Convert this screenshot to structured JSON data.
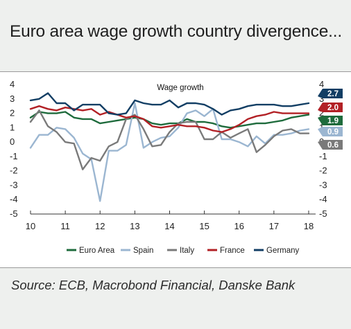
{
  "page": {
    "title": "Euro area wage growth country divergence...",
    "source": "Source: ECB, Macrobond Financial, Danske Bank"
  },
  "chart_data": {
    "type": "line",
    "title": "Wage growth",
    "xlabel": "",
    "ylabel": "",
    "ylim": [
      -5,
      4
    ],
    "xlim": [
      2010,
      2018.2
    ],
    "grid": false,
    "legend_position": "bottom",
    "y_ticks": [
      -5,
      -4,
      -3,
      -2,
      -1,
      0,
      1,
      2,
      3,
      4
    ],
    "y_tick_labels": [
      "-5",
      "-4",
      "-3",
      "-2",
      "-1",
      "0",
      "1",
      "2",
      "3",
      "4"
    ],
    "x_ticks": [
      2010,
      2011,
      2012,
      2013,
      2014,
      2015,
      2016,
      2017,
      2018
    ],
    "x_tick_labels": [
      "10",
      "11",
      "12",
      "13",
      "14",
      "15",
      "16",
      "17",
      "18"
    ],
    "x": [
      2010.0,
      2010.25,
      2010.5,
      2010.75,
      2011.0,
      2011.25,
      2011.5,
      2011.75,
      2012.0,
      2012.25,
      2012.5,
      2012.75,
      2013.0,
      2013.25,
      2013.5,
      2013.75,
      2014.0,
      2014.25,
      2014.5,
      2014.75,
      2015.0,
      2015.25,
      2015.5,
      2015.75,
      2016.0,
      2016.25,
      2016.5,
      2016.75,
      2017.0,
      2017.25,
      2017.5,
      2017.75,
      2018.0
    ],
    "series": [
      {
        "name": "Euro Area",
        "color": "#1e6b3c",
        "values": [
          1.7,
          2.1,
          2.0,
          2.0,
          2.1,
          1.7,
          1.6,
          1.6,
          1.3,
          1.4,
          1.5,
          1.6,
          1.7,
          1.6,
          1.3,
          1.2,
          1.3,
          1.3,
          1.6,
          1.4,
          1.4,
          1.3,
          1.1,
          1.0,
          1.1,
          1.2,
          1.3,
          1.3,
          1.4,
          1.5,
          1.7,
          1.8,
          1.9
        ]
      },
      {
        "name": "Spain",
        "color": "#9bb6d1",
        "values": [
          -0.4,
          0.5,
          0.5,
          1.0,
          0.9,
          0.3,
          -0.8,
          -1.2,
          -4.1,
          -0.6,
          -0.6,
          -0.2,
          2.7,
          -0.4,
          0.0,
          0.3,
          0.4,
          1.0,
          2.0,
          2.2,
          1.8,
          2.3,
          0.2,
          0.2,
          0.0,
          -0.3,
          0.4,
          -0.1,
          0.5,
          0.5,
          0.6,
          0.8,
          0.9
        ]
      },
      {
        "name": "Italy",
        "color": "#7a7a7a",
        "values": [
          1.4,
          2.2,
          1.1,
          0.7,
          0.0,
          -0.1,
          -1.9,
          -1.1,
          -1.3,
          -0.3,
          0.0,
          1.6,
          1.9,
          0.9,
          -0.3,
          -0.2,
          0.7,
          1.3,
          1.4,
          1.4,
          0.2,
          0.2,
          0.7,
          0.3,
          0.6,
          0.9,
          -0.7,
          -0.2,
          0.4,
          0.8,
          0.9,
          0.6,
          0.6
        ]
      },
      {
        "name": "France",
        "color": "#b22025",
        "values": [
          2.3,
          2.5,
          2.3,
          2.2,
          2.4,
          2.3,
          2.2,
          2.3,
          1.9,
          2.1,
          1.9,
          1.7,
          1.8,
          1.6,
          1.1,
          1.0,
          1.1,
          1.2,
          1.1,
          1.1,
          1.0,
          0.8,
          0.7,
          0.9,
          1.2,
          1.6,
          1.8,
          1.9,
          2.1,
          2.0,
          2.0,
          2.0,
          2.0
        ]
      },
      {
        "name": "Germany",
        "color": "#123e64",
        "values": [
          2.9,
          3.0,
          3.4,
          2.7,
          2.7,
          2.2,
          2.6,
          2.6,
          2.6,
          2.0,
          1.9,
          2.0,
          2.9,
          2.7,
          2.6,
          2.6,
          2.9,
          2.4,
          2.7,
          2.7,
          2.6,
          2.3,
          1.9,
          2.2,
          2.3,
          2.5,
          2.6,
          2.6,
          2.6,
          2.5,
          2.5,
          2.6,
          2.7
        ]
      }
    ],
    "end_labels": [
      {
        "text": "2.7",
        "value": 2.7,
        "color": "#123e64"
      },
      {
        "text": "2.0",
        "value": 2.0,
        "color": "#b22025"
      },
      {
        "text": "1.9",
        "value": 1.9,
        "color": "#1e6b3c"
      },
      {
        "text": "0.9",
        "value": 0.9,
        "color": "#9bb6d1"
      },
      {
        "text": "0.6",
        "value": 0.6,
        "color": "#7a7a7a"
      }
    ]
  }
}
